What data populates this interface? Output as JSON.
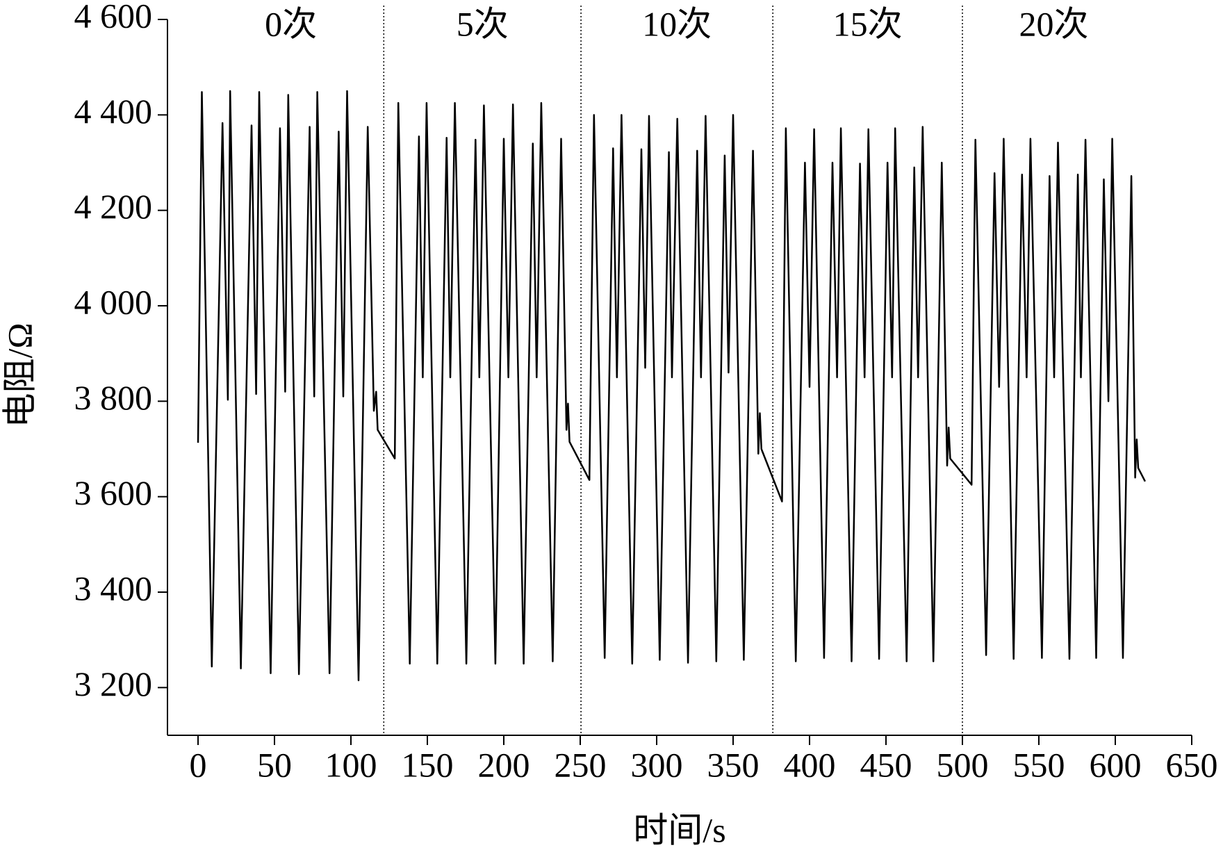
{
  "chart_data": {
    "type": "line",
    "x_label": "时间/s",
    "y_label": "电阻/Ω",
    "xlim": [
      -20,
      650
    ],
    "ylim": [
      3100,
      4600
    ],
    "xticks": [
      0,
      50,
      100,
      150,
      200,
      250,
      300,
      350,
      400,
      450,
      500,
      550,
      600,
      650
    ],
    "yticks": [
      {
        "value": 3200,
        "label": "3 200"
      },
      {
        "value": 3400,
        "label": "3 400"
      },
      {
        "value": 3600,
        "label": "3 600"
      },
      {
        "value": 3800,
        "label": "3 800"
      },
      {
        "value": 4000,
        "label": "4 000"
      },
      {
        "value": 4200,
        "label": "4 200"
      },
      {
        "value": 4400,
        "label": "4 400"
      },
      {
        "value": 4600,
        "label": "4 600"
      }
    ],
    "separators": [
      121.5,
      250.5,
      376,
      500
    ],
    "segment_labels": [
      "0次",
      "5次",
      "10次",
      "15次",
      "20次"
    ],
    "color": "#000000",
    "x": [
      0,
      2.5,
      9,
      16,
      19.5,
      21,
      28,
      35,
      38,
      40,
      47.5,
      53.6,
      57,
      59,
      66,
      73,
      76,
      78,
      86,
      92,
      95,
      97.5,
      105,
      111,
      115,
      116.5,
      117.5,
      128.7,
      131,
      138.5,
      144.5,
      147,
      149.5,
      156.5,
      162.6,
      165,
      168,
      175.5,
      181.5,
      184,
      187,
      194.5,
      200,
      203,
      206,
      213,
      219,
      221.5,
      224.5,
      232,
      237.5,
      241,
      242,
      243,
      256,
      259,
      266,
      271.5,
      274,
      277,
      284,
      290,
      292.5,
      295,
      302,
      308,
      310,
      313.5,
      320.5,
      326.5,
      329,
      332,
      339,
      344.5,
      347,
      350,
      357,
      363,
      366.5,
      367.5,
      368.5,
      382,
      384.5,
      391,
      397,
      400,
      403,
      409.5,
      415,
      418,
      420.5,
      427.5,
      433,
      436,
      438.5,
      445.5,
      451,
      454,
      456,
      463.5,
      468.5,
      471,
      474,
      481,
      486.5,
      490,
      491,
      492,
      506,
      508.5,
      515.5,
      521,
      524,
      527,
      533.5,
      539,
      542,
      544.5,
      552,
      557,
      560,
      562.5,
      570,
      575.5,
      577.5,
      580.5,
      587.5,
      592.5,
      595.5,
      598,
      605,
      610.5,
      613,
      614,
      615,
      619.5
    ],
    "values": [
      3713,
      4448,
      3244,
      4383,
      3803,
      4450,
      3240,
      4378,
      3815,
      4448,
      3230,
      4372,
      3820,
      4442,
      3228,
      4375,
      3810,
      4448,
      3230,
      4365,
      3810,
      4450,
      3215,
      4375,
      3780,
      3820,
      3740,
      3680,
      4425,
      3250,
      4355,
      3850,
      4425,
      3250,
      4352,
      3850,
      4425,
      3250,
      4348,
      3850,
      4420,
      3250,
      4350,
      3850,
      4422,
      3250,
      4340,
      3850,
      4425,
      3255,
      4350,
      3740,
      3795,
      3715,
      3635,
      4400,
      3262,
      4330,
      3850,
      4400,
      3250,
      4328,
      3870,
      4398,
      3258,
      4322,
      3850,
      4392,
      3252,
      4325,
      3850,
      4398,
      3255,
      4315,
      3860,
      4400,
      3258,
      4325,
      3690,
      3775,
      3700,
      3590,
      4372,
      3255,
      4300,
      3830,
      4370,
      3262,
      4300,
      3850,
      4372,
      3255,
      4298,
      3850,
      4370,
      3260,
      4300,
      3850,
      4372,
      3255,
      4290,
      3850,
      4375,
      3255,
      4300,
      3665,
      3745,
      3680,
      3625,
      4348,
      3268,
      4278,
      3830,
      4350,
      3260,
      4275,
      3850,
      4350,
      3262,
      4272,
      3850,
      4342,
      3260,
      4275,
      3850,
      4348,
      3262,
      4265,
      3800,
      4350,
      3262,
      4272,
      3640,
      3720,
      3660,
      3632
    ]
  }
}
